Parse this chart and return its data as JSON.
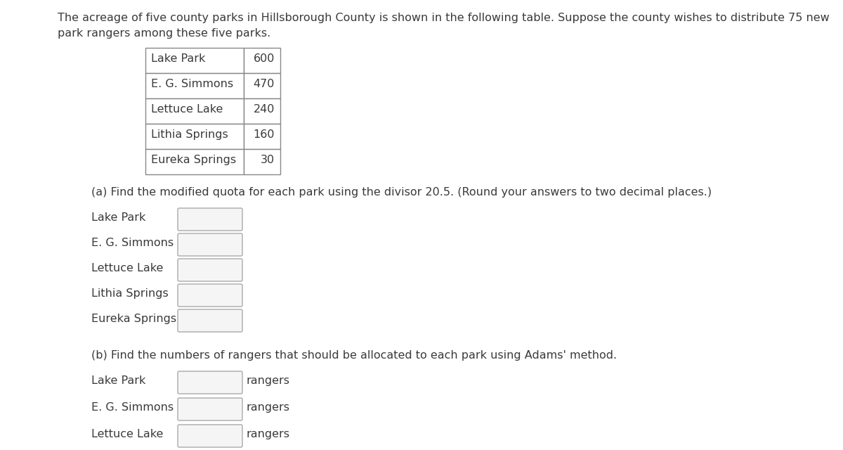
{
  "intro_text_line1": "The acreage of five county parks in Hillsborough County is shown in the following table. Suppose the county wishes to distribute 75 new",
  "intro_text_line2": "park rangers among these five parks.",
  "table_parks": [
    "Lake Park",
    "E. G. Simmons",
    "Lettuce Lake",
    "Lithia Springs",
    "Eureka Springs"
  ],
  "table_values": [
    "600",
    "470",
    "240",
    "160",
    "30"
  ],
  "part_a_label": "(a) Find the modified quota for each park using the divisor 20.5. (Round your answers to two decimal places.)",
  "part_b_label": "(b) Find the numbers of rangers that should be allocated to each park using Adams' method.",
  "parks": [
    "Lake Park",
    "E. G. Simmons",
    "Lettuce Lake",
    "Lithia Springs",
    "Eureka Springs"
  ],
  "rangers_label": "rangers",
  "bg_color": "#ffffff",
  "text_color": "#3a3a3a",
  "box_facecolor": "#f5f5f5",
  "box_edgecolor": "#aaaaaa",
  "table_edgecolor": "#999999",
  "font_size": 11.5,
  "small_font_size": 11.5
}
